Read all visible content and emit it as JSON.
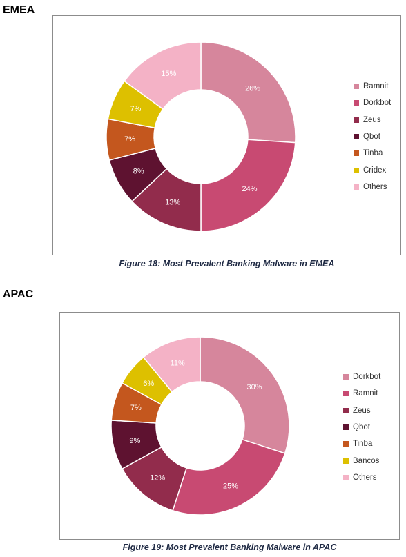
{
  "sections": [
    {
      "heading": "EMEA",
      "caption": "Figure 18: Most Prevalent Banking Malware in EMEA"
    },
    {
      "heading": "APAC",
      "caption": "Figure 19: Most Prevalent Banking Malware in APAC"
    }
  ],
  "chart_data": [
    {
      "type": "pie",
      "donut": true,
      "legend_position": "right",
      "categories": [
        "Ramnit",
        "Dorkbot",
        "Zeus",
        "Qbot",
        "Tinba",
        "Cridex",
        "Others"
      ],
      "values": [
        26,
        24,
        13,
        8,
        7,
        7,
        15
      ],
      "labels": [
        "26%",
        "24%",
        "13%",
        "8%",
        "7%",
        "7%",
        "15%"
      ],
      "colors": [
        "#d6869c",
        "#c84a72",
        "#922c4c",
        "#5e1230",
        "#c4571e",
        "#ddc000",
        "#f4b2c6"
      ]
    },
    {
      "type": "pie",
      "donut": true,
      "legend_position": "right",
      "categories": [
        "Dorkbot",
        "Ramnit",
        "Zeus",
        "Qbot",
        "Tinba",
        "Bancos",
        "Others"
      ],
      "values": [
        30,
        25,
        12,
        9,
        7,
        6,
        11
      ],
      "labels": [
        "30%",
        "25%",
        "12%",
        "9%",
        "7%",
        "6%",
        "11%"
      ],
      "colors": [
        "#d6869c",
        "#c84a72",
        "#922c4c",
        "#5e1230",
        "#c4571e",
        "#ddc000",
        "#f4b2c6"
      ]
    }
  ]
}
